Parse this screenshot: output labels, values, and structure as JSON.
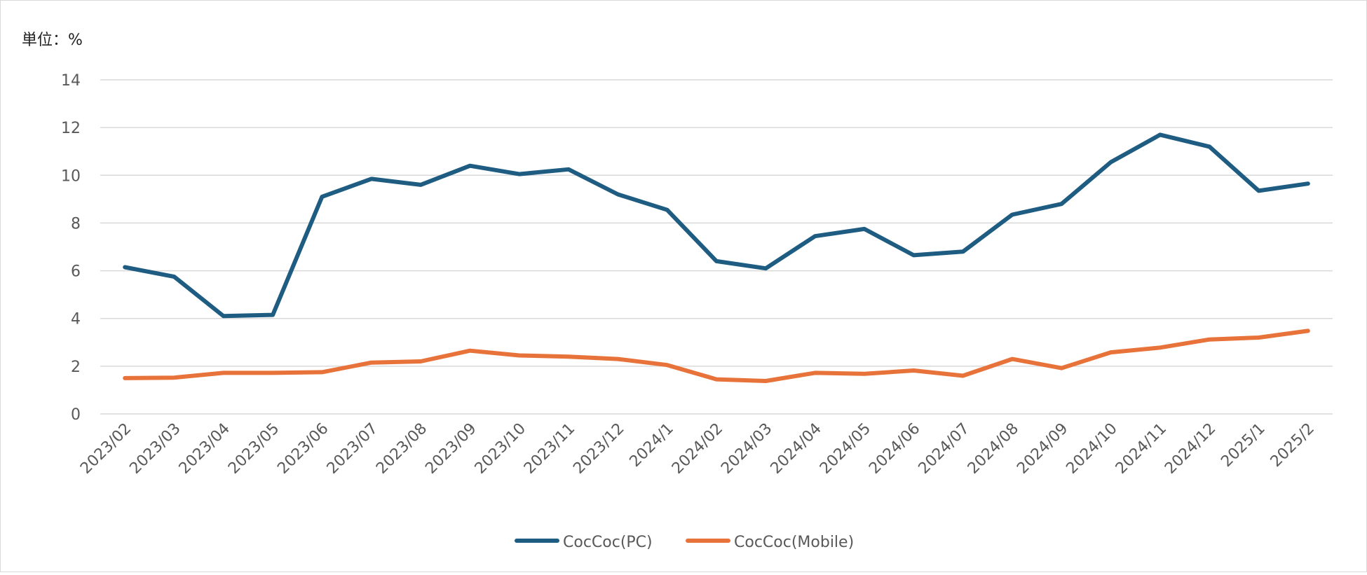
{
  "chart_data": {
    "type": "line",
    "unit_label": "単位：%",
    "categories": [
      "2023/02",
      "2023/03",
      "2023/04",
      "2023/05",
      "2023/06",
      "2023/07",
      "2023/08",
      "2023/09",
      "2023/10",
      "2023/11",
      "2023/12",
      "2024/1",
      "2024/02",
      "2024/03",
      "2024/04",
      "2024/05",
      "2024/06",
      "2024/07",
      "2024/08",
      "2024/09",
      "2024/10",
      "2024/11",
      "2024/12",
      "2025/1",
      "2025/2"
    ],
    "series": [
      {
        "name": "CocCoc(PC)",
        "color": "#1f5c82",
        "values": [
          6.15,
          5.75,
          4.1,
          4.15,
          9.1,
          9.85,
          9.6,
          10.4,
          10.05,
          10.25,
          9.2,
          8.55,
          6.4,
          6.1,
          7.45,
          7.75,
          6.65,
          6.8,
          8.35,
          8.8,
          10.55,
          11.7,
          11.2,
          9.35,
          9.65
        ]
      },
      {
        "name": "CocCoc(Mobile)",
        "color": "#e8733a",
        "values": [
          1.5,
          1.52,
          1.72,
          1.72,
          1.75,
          2.15,
          2.2,
          2.65,
          2.45,
          2.4,
          2.3,
          2.05,
          1.45,
          1.38,
          1.72,
          1.68,
          1.82,
          1.6,
          2.3,
          1.92,
          2.58,
          2.78,
          3.12,
          3.2,
          3.48
        ]
      }
    ],
    "yticks": [
      "0",
      "2",
      "4",
      "6",
      "8",
      "10",
      "12",
      "14"
    ],
    "ylim": [
      0,
      14
    ],
    "grid": true,
    "legend": "bottom-center"
  }
}
